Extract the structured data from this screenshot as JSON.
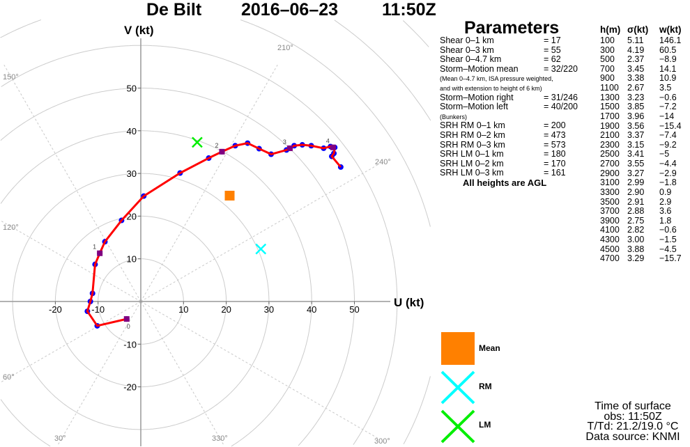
{
  "header": {
    "station": "De Bilt",
    "date": "2016–06–23",
    "time": "11:50Z"
  },
  "parameters": {
    "title": "Parameters",
    "rows": [
      {
        "label": "Shear 0–1 km",
        "value": "= 17"
      },
      {
        "label": "Shear 0–3 km",
        "value": "= 55"
      },
      {
        "label": "Shear 0–4.7 km",
        "value": "= 62"
      },
      {
        "label": "Storm–Motion mean",
        "value": "= 32/220"
      }
    ],
    "note1": "(Mean 0–4.7 km, ISA pressure weighted,",
    "note2": "and with extension to height of 6 km)",
    "rows2": [
      {
        "label": "Storm–Motion right",
        "value": "= 31/246"
      },
      {
        "label": "Storm–Motion left",
        "value": "= 40/200"
      }
    ],
    "note3": "(Bunkers)",
    "rows3": [
      {
        "label": "SRH RM 0–1 km",
        "value": "= 200"
      },
      {
        "label": "SRH RM 0–2 km",
        "value": "= 473"
      },
      {
        "label": "SRH RM 0–3 km",
        "value": "= 573"
      },
      {
        "label": "SRH LM 0–1 km",
        "value": "= 180"
      },
      {
        "label": "SRH LM 0–2 km",
        "value": "= 170"
      },
      {
        "label": "SRH LM 0–3 km",
        "value": "= 161"
      }
    ],
    "footer": "All heights are AGL"
  },
  "table": {
    "headers": [
      "h(m)",
      "σ(kt)",
      "w(kt)"
    ],
    "rows": [
      [
        "100",
        "5.11",
        "146.1"
      ],
      [
        "300",
        "4.19",
        "60.5"
      ],
      [
        "500",
        "2.37",
        "−8.9"
      ],
      [
        "700",
        "3.45",
        "14.1"
      ],
      [
        "900",
        "3.38",
        "10.9"
      ],
      [
        "1100",
        "2.67",
        "3.5"
      ],
      [
        "1300",
        "3.23",
        "−0.6"
      ],
      [
        "1500",
        "3.85",
        "−7.2"
      ],
      [
        "1700",
        "3.96",
        "−14"
      ],
      [
        "1900",
        "3.56",
        "−15.4"
      ],
      [
        "2100",
        "3.37",
        "−7.4"
      ],
      [
        "2300",
        "3.15",
        "−9.2"
      ],
      [
        "2500",
        "3.41",
        "−5"
      ],
      [
        "2700",
        "3.55",
        "−4.4"
      ],
      [
        "2900",
        "3.27",
        "−2.9"
      ],
      [
        "3100",
        "2.99",
        "−1.8"
      ],
      [
        "3300",
        "2.90",
        "0.9"
      ],
      [
        "3500",
        "2.91",
        "2.9"
      ],
      [
        "3700",
        "2.88",
        "3.6"
      ],
      [
        "3900",
        "2.75",
        "1.8"
      ],
      [
        "4100",
        "2.82",
        "−0.6"
      ],
      [
        "4300",
        "3.00",
        "−1.5"
      ],
      [
        "4500",
        "3.88",
        "−4.5"
      ],
      [
        "4700",
        "3.29",
        "−15.7"
      ]
    ]
  },
  "legend": {
    "mean": "Mean",
    "rm": "RM",
    "lm": "LM"
  },
  "footer": {
    "line1": "Time of surface",
    "line2": "obs: 11:50Z",
    "line3": "T/Td: 21.2/19.0 °C",
    "line4": "Data source: KNMI"
  },
  "colors": {
    "line": "#ff0000",
    "point": "#0000ff",
    "marker": "#800080",
    "mean": "#ff8000",
    "rm": "#00ffff",
    "lm": "#00ee00",
    "grid": "#cccccc"
  },
  "chart_data": {
    "type": "scatter",
    "title": "De Bilt 2016–06–23 11:50Z",
    "xlabel": "U (kt)",
    "ylabel": "V (kt)",
    "xticks": [
      -20,
      -10,
      10,
      20,
      30,
      40,
      50
    ],
    "yticks": [
      -20,
      -10,
      10,
      20,
      30,
      40,
      50
    ],
    "xlim": [
      -33,
      58
    ],
    "ylim": [
      -34,
      66
    ],
    "rings_kt": [
      10,
      20,
      30,
      40,
      50,
      60,
      70,
      80,
      90,
      100
    ],
    "direction_labels": [
      "150°",
      "210°",
      "240°",
      "120°",
      "60°",
      "30°",
      "330°",
      "300°"
    ],
    "hodograph": {
      "u": [
        -3.3,
        -10.2,
        -12.5,
        -11.8,
        -11.3,
        -10.7,
        -9.6,
        -8.4,
        -4.5,
        0.7,
        9.2,
        15.9,
        19.0,
        22.1,
        25.0,
        27.7,
        30.5,
        34.1,
        34.9,
        35.9,
        37.8,
        39.9,
        42.8,
        44.4,
        45.0,
        45.4,
        45.2,
        44.7,
        46.8
      ],
      "v": [
        -4.1,
        -5.7,
        -2.3,
        0.0,
        1.9,
        8.7,
        11.3,
        14.0,
        19.0,
        24.7,
        30.1,
        33.6,
        35.1,
        36.5,
        37.1,
        35.8,
        34.5,
        35.5,
        35.9,
        36.5,
        36.7,
        36.5,
        35.9,
        36.3,
        36.1,
        36.1,
        34.7,
        34.0,
        31.5
      ]
    },
    "km_markers": [
      {
        "label": "0",
        "u": -3.3,
        "v": -4.1
      },
      {
        "label": "1",
        "u": -9.6,
        "v": 11.3
      },
      {
        "label": "2",
        "u": 19.0,
        "v": 35.1
      },
      {
        "label": "3",
        "u": 34.9,
        "v": 35.9
      },
      {
        "label": "4",
        "u": 45.0,
        "v": 36.1
      }
    ],
    "storm_motion": {
      "mean": {
        "u": 20.8,
        "v": 24.8
      },
      "rm": {
        "u": 28.1,
        "v": 12.3
      },
      "lm": {
        "u": 13.2,
        "v": 37.3
      }
    }
  }
}
